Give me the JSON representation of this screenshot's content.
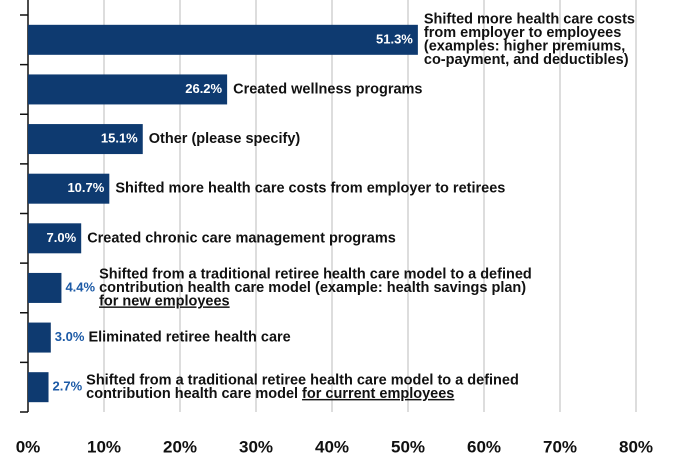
{
  "chart_data": {
    "type": "bar",
    "orientation": "horizontal",
    "categories": [
      [
        "Shifted more health care costs",
        "from employer to employees",
        "(examples: higher premiums,",
        "co-payment, and deductibles)"
      ],
      [
        "Created wellness programs"
      ],
      [
        "Other (please specify)"
      ],
      [
        "Shifted more health care costs from employer to retirees"
      ],
      [
        "Created chronic care management programs"
      ],
      [
        "Shifted from a traditional retiree health care model to a defined",
        "contribution health care model (example: health savings plan)",
        {
          "underlined": "for new employees"
        }
      ],
      [
        "Eliminated retiree health care"
      ],
      [
        "Shifted from a traditional retiree health care model to a defined",
        {
          "text": "contribution health care model",
          "underlined": "for current employees"
        }
      ]
    ],
    "values": [
      51.3,
      26.2,
      15.1,
      10.7,
      7.0,
      4.4,
      3.0,
      2.7
    ],
    "value_labels": [
      "51.3%",
      "26.2%",
      "15.1%",
      "10.7%",
      "7.0%",
      "4.4%",
      "3.0%",
      "2.7%"
    ],
    "color": "#0e3a70",
    "label_color": "#1c5aa6",
    "xlim": [
      0,
      80
    ],
    "xticks": [
      {
        "value": 0,
        "label": "0%"
      },
      {
        "value": 10,
        "label": "10%"
      },
      {
        "value": 20,
        "label": "20%"
      },
      {
        "value": 30,
        "label": "30%"
      },
      {
        "value": 40,
        "label": "40%"
      },
      {
        "value": 50,
        "label": "50%"
      },
      {
        "value": 60,
        "label": "60%"
      },
      {
        "value": 70,
        "label": "70%"
      },
      {
        "value": 80,
        "label": "80%"
      }
    ],
    "grid": true
  }
}
